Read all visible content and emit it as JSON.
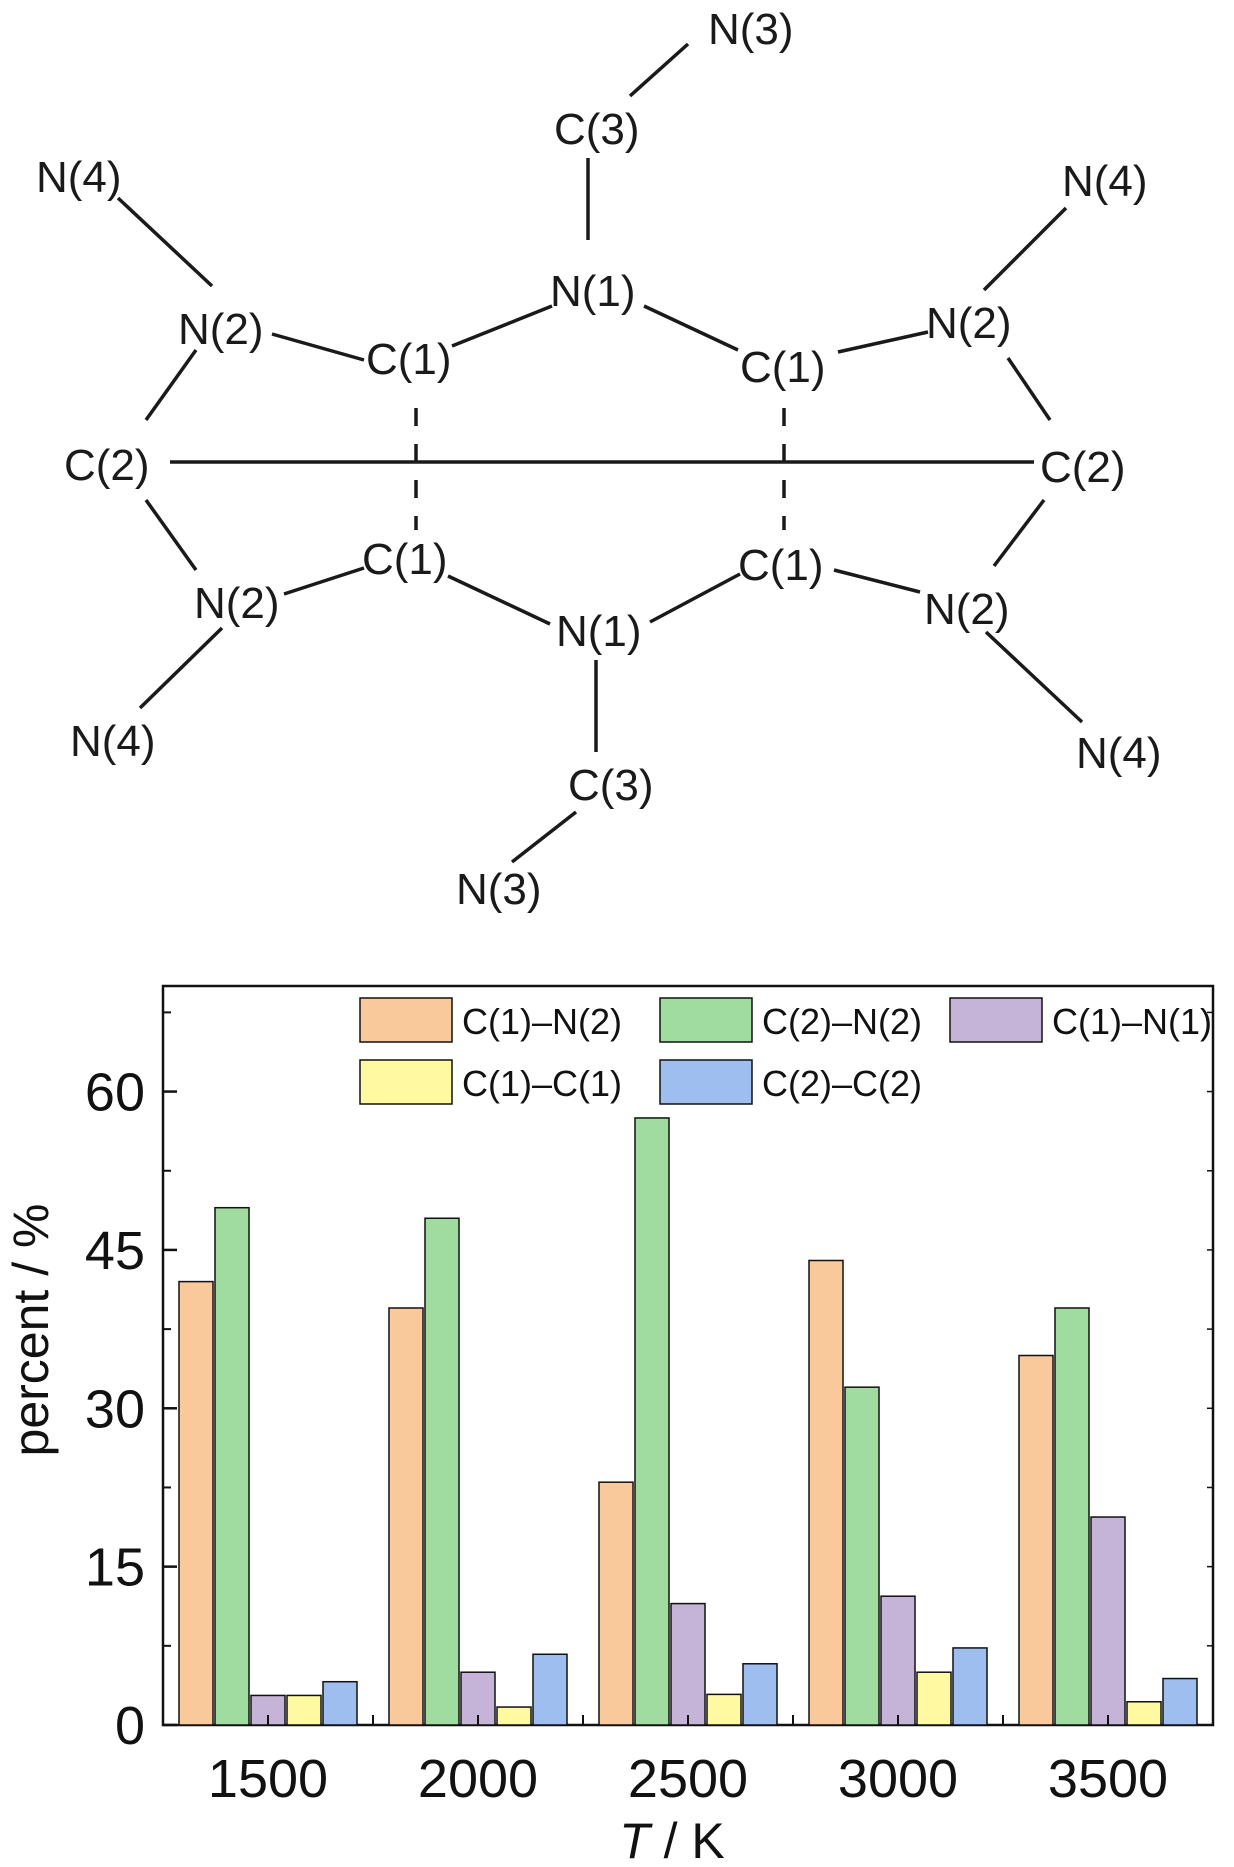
{
  "scheme": {
    "atoms": {
      "n3_top": "N(3)",
      "c3_top": "C(3)",
      "n1_top": "N(1)",
      "n4_tl": "N(4)",
      "n2_tl": "N(2)",
      "c1_tl": "C(1)",
      "c1_tr": "C(1)",
      "n2_tr": "N(2)",
      "n4_tr": "N(4)",
      "c2_l": "C(2)",
      "c2_r": "C(2)",
      "n2_bl": "N(2)",
      "c1_bl": "C(1)",
      "n1_bot": "N(1)",
      "c1_br": "C(1)",
      "n2_br": "N(2)",
      "n4_bl": "N(4)",
      "n4_br": "N(4)",
      "c3_bot": "C(3)",
      "n3_bot": "N(3)"
    }
  },
  "chart_data": {
    "type": "bar",
    "xlabel_italic": "T",
    "xlabel_rest": " / K",
    "ylabel": "percent / %",
    "ylim": [
      0,
      70
    ],
    "yticks": [
      "0",
      "15",
      "30",
      "45",
      "60"
    ],
    "categories": [
      "1500",
      "2000",
      "2500",
      "3000",
      "3500"
    ],
    "series": [
      {
        "name": "C(1)–N(2)",
        "color": "#f9c89b",
        "values": [
          42,
          39.5,
          23,
          44,
          35
        ]
      },
      {
        "name": "C(2)–N(2)",
        "color": "#a0dba0",
        "values": [
          49,
          48,
          57.5,
          32,
          39.5
        ]
      },
      {
        "name": "C(1)–N(1)",
        "color": "#c5b4d8",
        "values": [
          2.8,
          5,
          11.5,
          12.2,
          19.7
        ]
      },
      {
        "name": "C(1)–C(1)",
        "color": "#fffaa2",
        "values": [
          2.8,
          1.7,
          2.9,
          5,
          2.2
        ]
      },
      {
        "name": "C(2)–C(2)",
        "color": "#9fbef0",
        "values": [
          4.1,
          6.7,
          5.8,
          7.3,
          4.4
        ]
      }
    ],
    "legend_position": "top-right",
    "grid": false
  }
}
